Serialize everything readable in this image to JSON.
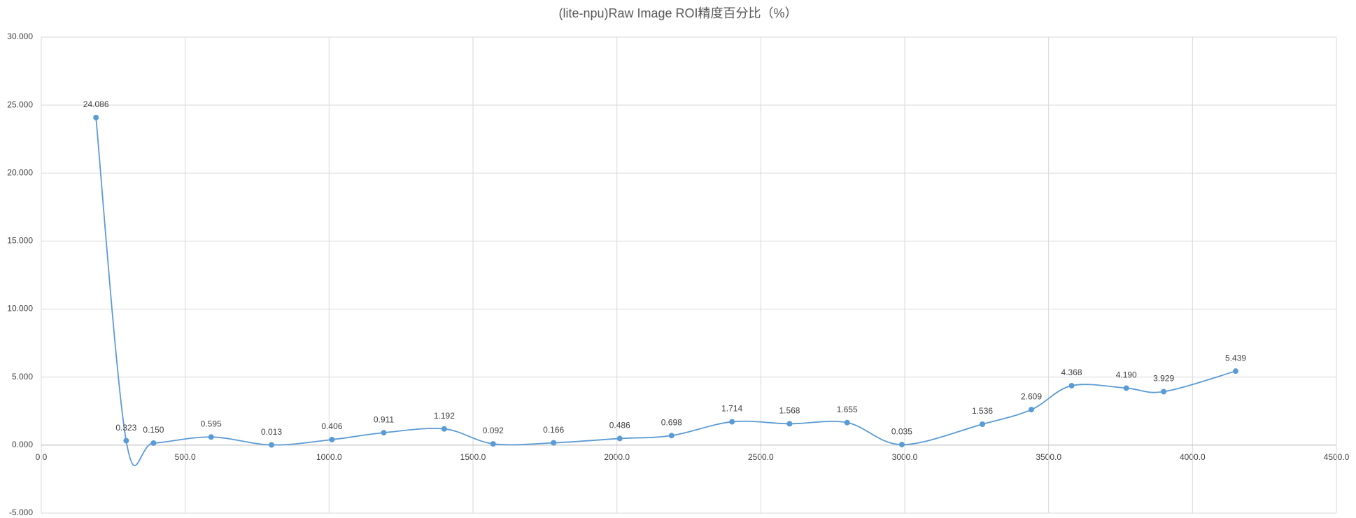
{
  "chart_data": {
    "type": "scatter",
    "smooth": true,
    "title": "(lite-npu)Raw Image ROI精度百分比（%）",
    "series": [
      {
        "color": "#5b9bd5",
        "x": [
          190,
          295,
          390,
          590,
          800,
          1010,
          1190,
          1400,
          1570,
          1780,
          2010,
          2190,
          2400,
          2600,
          2800,
          2990,
          3270,
          3440,
          3580,
          3770,
          3900,
          4150
        ],
        "values": [
          24.086,
          0.323,
          0.15,
          0.595,
          0.013,
          0.406,
          0.911,
          1.192,
          0.092,
          0.166,
          0.486,
          0.698,
          1.714,
          1.568,
          1.655,
          0.035,
          1.536,
          2.609,
          4.368,
          4.19,
          3.929,
          5.439
        ],
        "value_labels": [
          "24.086",
          "0.323",
          "0.150",
          "0.595",
          "0.013",
          "0.406",
          "0.911",
          "1.192",
          "0.092",
          "0.166",
          "0.486",
          "0.698",
          "1.714",
          "1.568",
          "1.655",
          "0.035",
          "1.536",
          "2.609",
          "4.368",
          "4.190",
          "3.929",
          "5.439"
        ]
      }
    ],
    "xlim": [
      0,
      4500
    ],
    "xticks": [
      {
        "value": 0,
        "label": "0.0"
      },
      {
        "value": 500,
        "label": "500.0"
      },
      {
        "value": 1000,
        "label": "1000.0"
      },
      {
        "value": 1500,
        "label": "1500.0"
      },
      {
        "value": 2000,
        "label": "2000.0"
      },
      {
        "value": 2500,
        "label": "2500.0"
      },
      {
        "value": 3000,
        "label": "3000.0"
      },
      {
        "value": 3500,
        "label": "3500.0"
      },
      {
        "value": 4000,
        "label": "4000.0"
      },
      {
        "value": 4500,
        "label": "4500.0"
      }
    ],
    "ylim": [
      -5,
      30
    ],
    "yticks": [
      {
        "value": -5,
        "label": "-5.000"
      },
      {
        "value": 0,
        "label": "0.000"
      },
      {
        "value": 5,
        "label": "5.000"
      },
      {
        "value": 10,
        "label": "10.000"
      },
      {
        "value": 15,
        "label": "15.000"
      },
      {
        "value": 20,
        "label": "20.000"
      },
      {
        "value": 25,
        "label": "25.000"
      },
      {
        "value": 30,
        "label": "30.000"
      }
    ],
    "grid": true
  }
}
